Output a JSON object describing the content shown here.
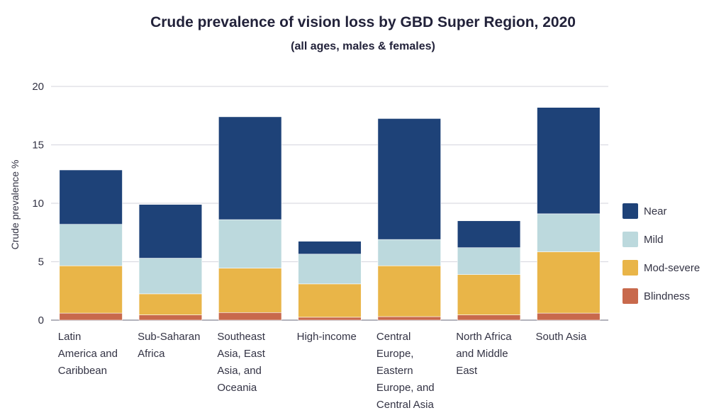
{
  "title": "Crude prevalence of vision loss by GBD Super Region, 2020",
  "subtitle": "(all ages, males & females)",
  "chart_data": {
    "type": "bar",
    "stacked": true,
    "ylabel": "Crude prevalence %",
    "ylim": [
      0,
      20
    ],
    "yticks": [
      0,
      5,
      10,
      15,
      20
    ],
    "grid": true,
    "legend_position": "right",
    "categories": [
      [
        "Latin",
        "America and",
        "Caribbean"
      ],
      [
        "Sub-Saharan",
        "Africa"
      ],
      [
        "Southeast",
        "Asia, East",
        "Asia, and",
        "Oceania"
      ],
      [
        "High-income"
      ],
      [
        "Central",
        "Europe,",
        "Eastern",
        "Europe, and",
        "Central Asia"
      ],
      [
        "North Africa",
        "and Middle",
        "East"
      ],
      [
        "South Asia"
      ]
    ],
    "series": [
      {
        "name": "Blindness",
        "color": "#c8694c",
        "values": [
          0.6,
          0.45,
          0.65,
          0.25,
          0.3,
          0.45,
          0.6
        ]
      },
      {
        "name": "Mod-severe",
        "color": "#e9b548",
        "values": [
          4.05,
          1.8,
          3.8,
          2.85,
          4.35,
          3.45,
          5.25
        ]
      },
      {
        "name": "Mild",
        "color": "#bcd9dd",
        "values": [
          3.55,
          3.05,
          4.15,
          2.55,
          2.25,
          2.3,
          3.25
        ]
      },
      {
        "name": "Near",
        "color": "#1e4278",
        "values": [
          4.65,
          4.6,
          8.8,
          1.1,
          10.35,
          2.3,
          9.1
        ]
      }
    ],
    "legend_order": [
      "Near",
      "Mild",
      "Mod-severe",
      "Blindness"
    ]
  }
}
